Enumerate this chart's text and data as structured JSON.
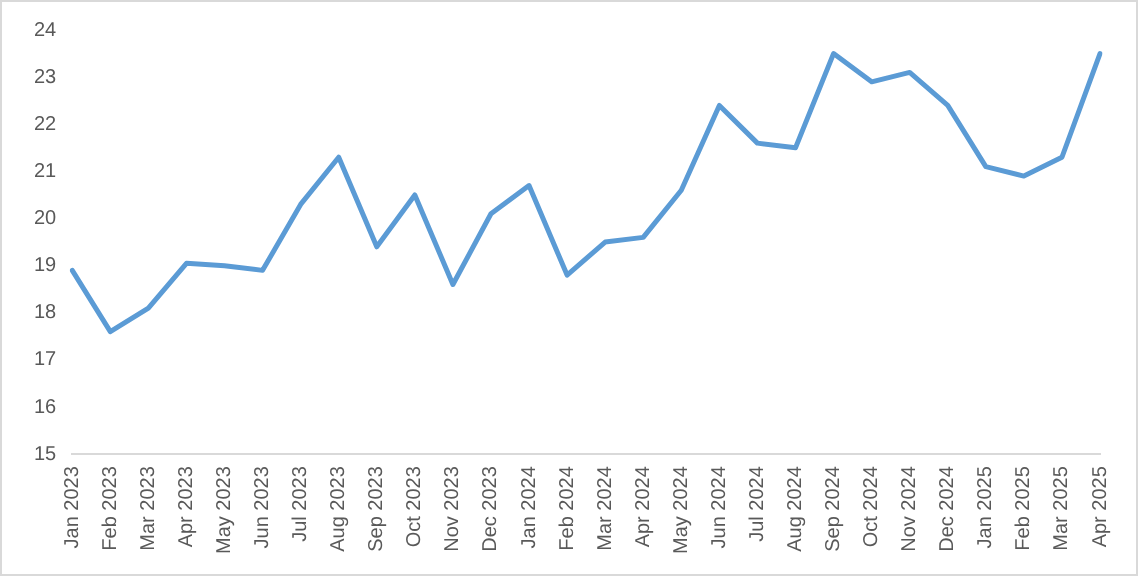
{
  "chart_data": {
    "type": "line",
    "categories": [
      "Jan 2023",
      "Feb 2023",
      "Mar 2023",
      "Apr 2023",
      "May 2023",
      "Jun 2023",
      "Jul 2023",
      "Aug 2023",
      "Sep 2023",
      "Oct 2023",
      "Nov 2023",
      "Dec 2023",
      "Jan 2024",
      "Feb 2024",
      "Mar 2024",
      "Apr 2024",
      "May 2024",
      "Jun 2024",
      "Jul 2024",
      "Aug 2024",
      "Sep 2024",
      "Oct 2024",
      "Nov 2024",
      "Dec 2024",
      "Jan 2025",
      "Feb 2025",
      "Mar 2025",
      "Apr 2025"
    ],
    "series": [
      {
        "color": "#5b9bd5",
        "values": [
          18.9,
          17.6,
          18.1,
          19.05,
          19.0,
          18.9,
          20.3,
          21.3,
          19.4,
          20.5,
          18.6,
          20.1,
          20.7,
          18.8,
          19.5,
          19.6,
          20.6,
          22.4,
          21.6,
          21.5,
          23.5,
          22.9,
          23.1,
          22.4,
          21.1,
          20.9,
          21.3,
          23.5
        ]
      }
    ],
    "ylim": [
      15,
      24
    ],
    "yticks": [
      15,
      16,
      17,
      18,
      19,
      20,
      21,
      22,
      23,
      24
    ],
    "grid": false,
    "legend": false,
    "marker": "none",
    "line_style": "solid"
  }
}
